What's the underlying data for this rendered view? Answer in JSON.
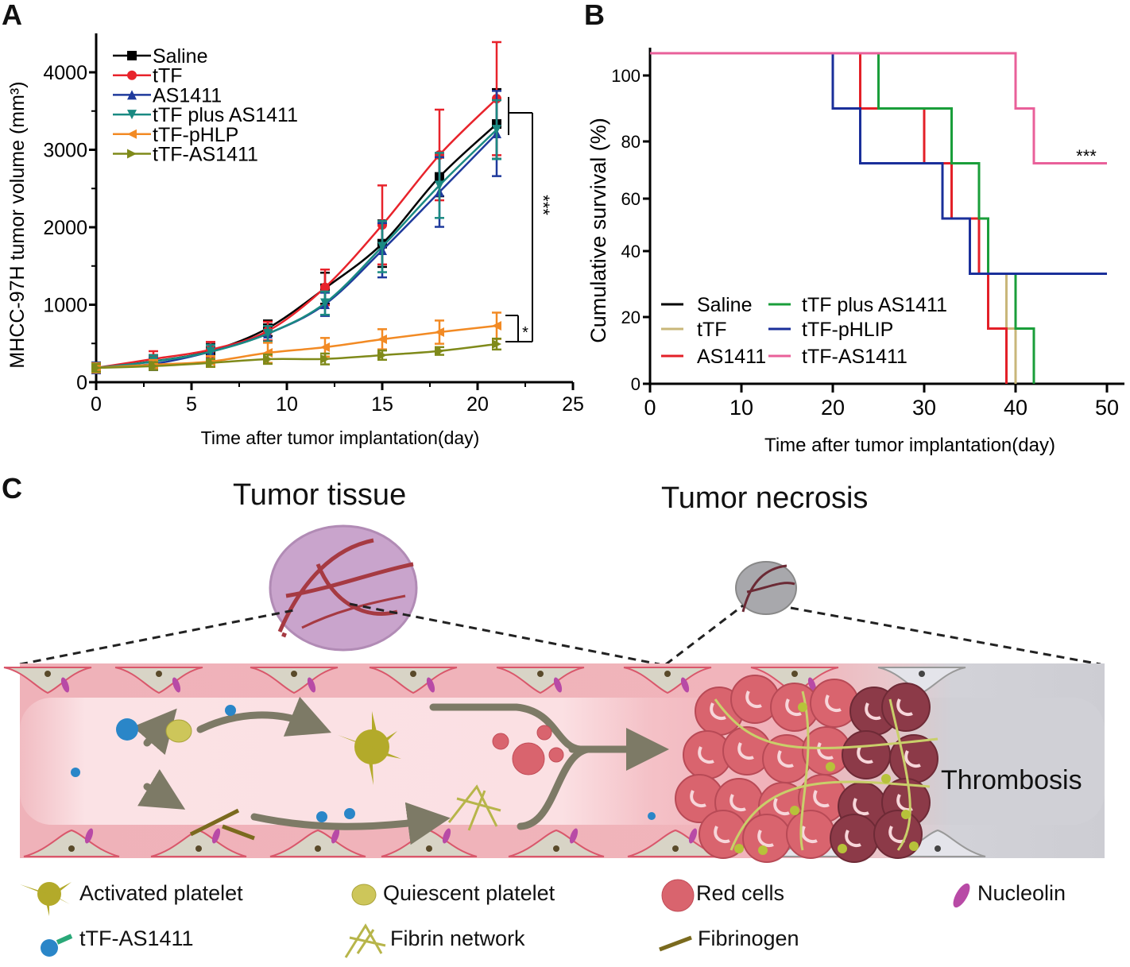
{
  "panels": {
    "a": "A",
    "b": "B",
    "c": "C"
  },
  "chart_data": [
    {
      "type": "line",
      "panel": "A",
      "xlabel": "Time after tumor implantation(day)",
      "ylabel": "MHCC-97H tumor volume (mm³)",
      "xlim": [
        0,
        25
      ],
      "ylim": [
        0,
        4500
      ],
      "xticks": [
        0,
        5,
        10,
        15,
        20,
        25
      ],
      "yticks": [
        0,
        1000,
        2000,
        3000,
        4000
      ],
      "grid": false,
      "legend_position": "top-left",
      "x": [
        0,
        3,
        6,
        9,
        12,
        15,
        18,
        21
      ],
      "series": [
        {
          "name": "Saline",
          "color": "#000000",
          "marker": "square",
          "values": [
            185,
            270,
            403,
            697,
            1213,
            1788,
            2650,
            3333
          ],
          "error": [
            60,
            80,
            90,
            100,
            200,
            300,
            250,
            450
          ]
        },
        {
          "name": "tTF",
          "color": "#e8232b",
          "marker": "circle",
          "values": [
            185,
            300,
            420,
            660,
            1224,
            2030,
            2933,
            3660
          ],
          "error": [
            60,
            100,
            100,
            120,
            230,
            510,
            585,
            730
          ]
        },
        {
          "name": "AS1411",
          "color": "#1f3a9c",
          "marker": "triangle-up",
          "values": [
            185,
            236,
            393,
            626,
            1005,
            1703,
            2455,
            3210
          ],
          "error": [
            70,
            80,
            90,
            100,
            150,
            350,
            450,
            550
          ]
        },
        {
          "name": "tTF plus AS1411",
          "color": "#1a8a82",
          "marker": "triangle-down",
          "values": [
            185,
            267,
            393,
            626,
            1020,
            1750,
            2540,
            3260
          ],
          "error": [
            60,
            80,
            90,
            100,
            150,
            330,
            420,
            380
          ]
        },
        {
          "name": "tTF-pHLP",
          "color": "#f28a24",
          "marker": "triangle-left",
          "values": [
            185,
            226,
            267,
            379,
            451,
            554,
            646,
            728
          ],
          "error": [
            60,
            60,
            70,
            130,
            120,
            130,
            150,
            170
          ]
        },
        {
          "name": "tTF-AS1411",
          "color": "#7f8a1a",
          "marker": "triangle-right",
          "values": [
            185,
            208,
            249,
            297,
            300,
            349,
            403,
            492
          ],
          "error": [
            50,
            50,
            50,
            60,
            70,
            60,
            50,
            70
          ]
        }
      ],
      "annotations": [
        "***",
        "*"
      ]
    },
    {
      "type": "line",
      "subtype": "step",
      "panel": "B",
      "xlabel": "Time after tumor implantation(day)",
      "ylabel": "Cumulative  survival (%)",
      "xlim": [
        0,
        50
      ],
      "ylim": [
        0,
        100
      ],
      "xticks": [
        0,
        10,
        20,
        30,
        40,
        50
      ],
      "yticks": [
        0,
        20,
        40,
        60,
        80,
        100
      ],
      "grid": false,
      "legend_position": "bottom-left",
      "series": [
        {
          "name": "Saline",
          "color": "#000000",
          "steps": [
            [
              0,
              100
            ],
            [
              23,
              83.3
            ],
            [
              30,
              66.7
            ],
            [
              33,
              50
            ],
            [
              36,
              33.3
            ],
            [
              39,
              16.7
            ],
            [
              40,
              0
            ]
          ]
        },
        {
          "name": "tTF",
          "color": "#c9b77a",
          "steps": [
            [
              0,
              100
            ],
            [
              23,
              83.3
            ],
            [
              30,
              66.7
            ],
            [
              33,
              50
            ],
            [
              36,
              33.3
            ],
            [
              39,
              16.7
            ],
            [
              40,
              0
            ]
          ]
        },
        {
          "name": "AS1411",
          "color": "#e32028",
          "steps": [
            [
              0,
              100
            ],
            [
              23,
              83.3
            ],
            [
              30,
              66.7
            ],
            [
              33,
              50
            ],
            [
              36,
              33.3
            ],
            [
              37,
              16.7
            ],
            [
              39,
              0
            ]
          ]
        },
        {
          "name": "tTF plus AS1411",
          "color": "#1a9e3a",
          "steps": [
            [
              0,
              100
            ],
            [
              25,
              83.3
            ],
            [
              33,
              66.7
            ],
            [
              36,
              50
            ],
            [
              37,
              33.3
            ],
            [
              40,
              16.7
            ],
            [
              42,
              0
            ]
          ]
        },
        {
          "name": "tTF-pHLIP",
          "color": "#1a2f9a",
          "steps": [
            [
              0,
              100
            ],
            [
              20,
              83.3
            ],
            [
              23,
              66.7
            ],
            [
              32,
              50
            ],
            [
              35,
              33.3
            ],
            [
              50,
              33.3
            ]
          ]
        },
        {
          "name": "tTF-AS1411",
          "color": "#e9609a",
          "steps": [
            [
              0,
              100
            ],
            [
              40,
              83.3
            ],
            [
              42,
              66.7
            ],
            [
              50,
              66.7
            ]
          ]
        }
      ],
      "annotations": [
        "***"
      ]
    }
  ],
  "panel_c": {
    "title_left": "Tumor tissue",
    "title_right": "Tumor necrosis",
    "thrombosis_label": "Thrombosis",
    "legend": {
      "activated_platelet": "Activated platelet",
      "quiescent_platelet": "Quiescent platelet",
      "red_cells": "Red cells",
      "nucleolin": "Nucleolin",
      "ttf_as1411": "tTF-AS1411",
      "fibrin_network": "Fibrin network",
      "fibrinogen": "Fibrinogen"
    },
    "colors": {
      "vessel": "#f2b8bf",
      "lumen": "#fbe0e3",
      "necrosis": "#cfcfd6",
      "arrow": "#7d7a66",
      "platelet": "#b3aa2a",
      "red_cell": "#d9646e",
      "nucleolin": "#b84aa6",
      "conjugate": "#2a86c8",
      "fibrin": "#c9cf6a"
    }
  }
}
